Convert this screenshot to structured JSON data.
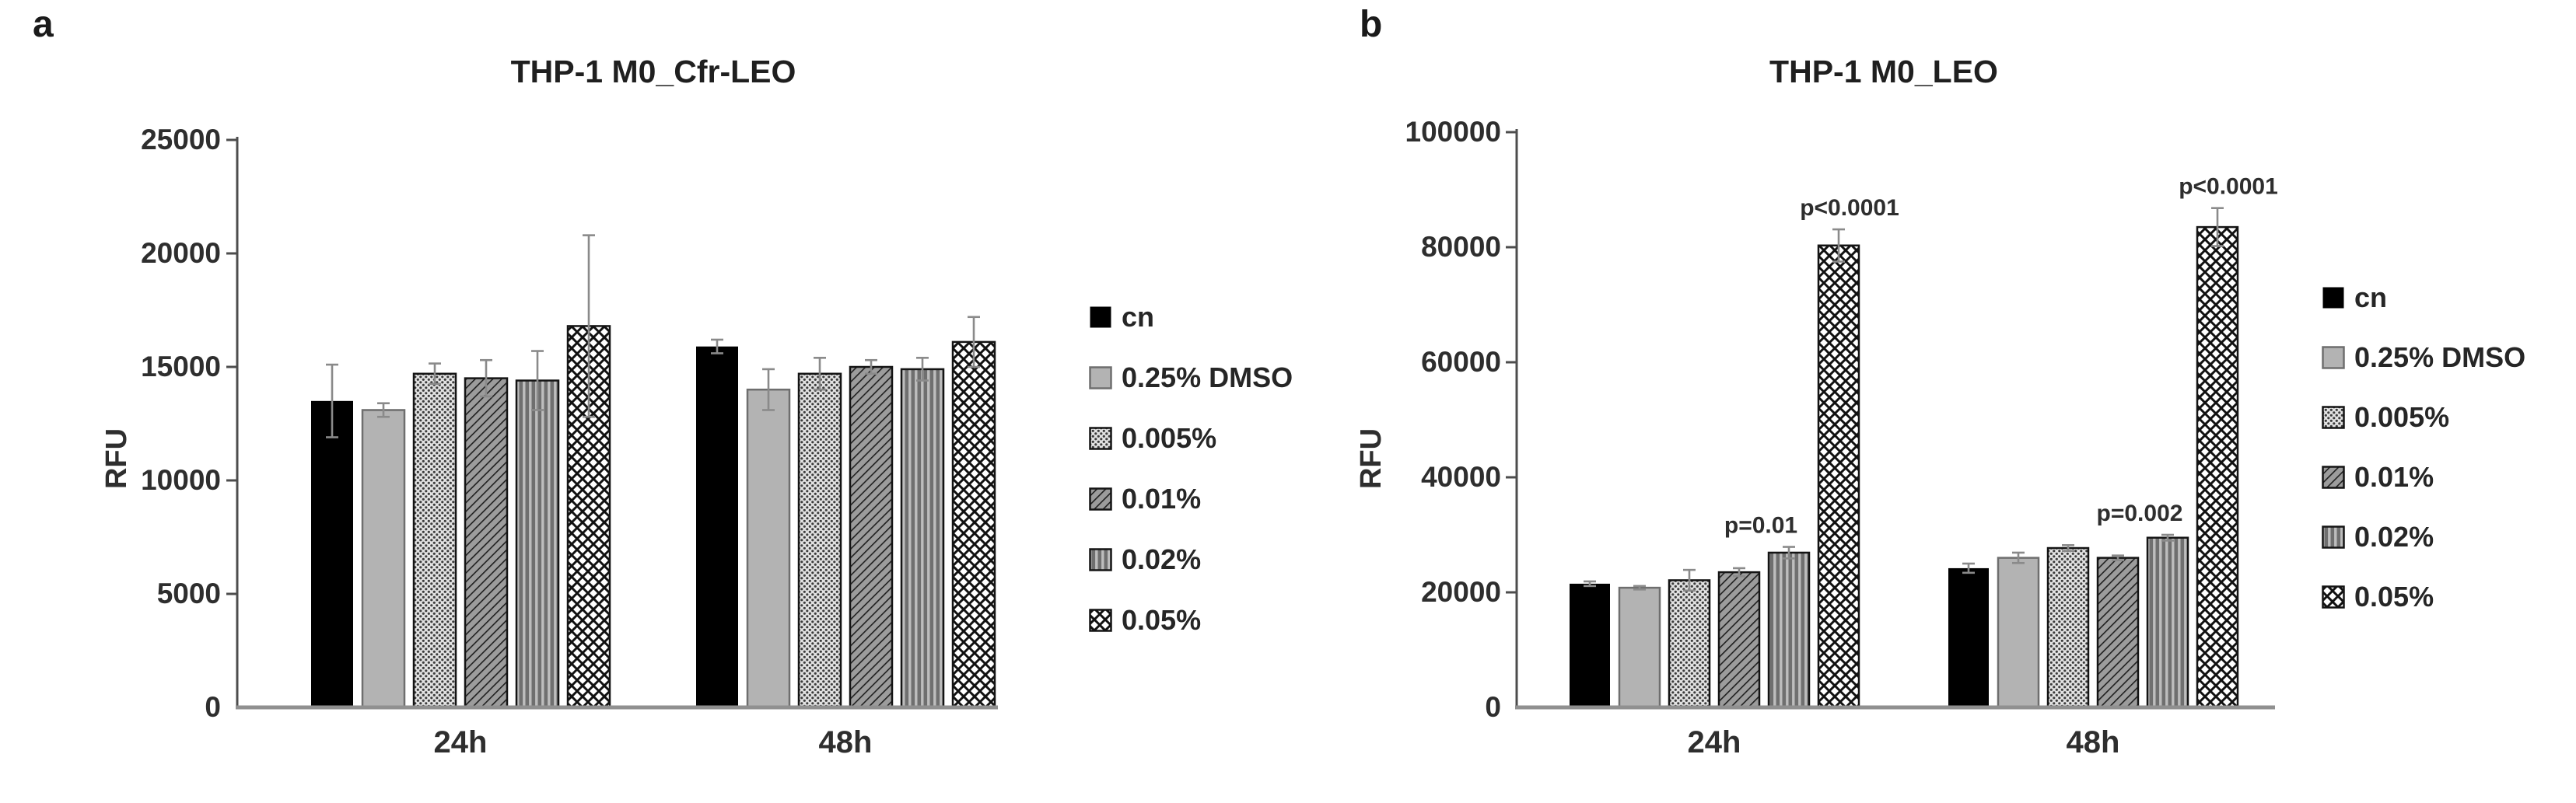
{
  "figure": {
    "ylabel_unit": "RFU",
    "palette": {
      "black": "#000000",
      "gray_fill": "#b3b3b3",
      "gray_stroke": "#6e6e6e",
      "pattern_stroke": "#141414",
      "dots_bg": "#e2e2e2",
      "dots_fg": "#3c3c3c",
      "diag_bg": "#9c9c9c",
      "diag_fg": "#1f1f1f",
      "vert_bg": "#6f6f6f",
      "vert_fg": "#bdbdbd",
      "diamond_bg": "#ffffff",
      "diamond_fg": "#111111",
      "error_bar": "#8a8a8a",
      "axis": "#4d4d4d",
      "baseline": "#909090",
      "text": "#2e2e2e"
    }
  },
  "chart_data": [
    {
      "id": "a",
      "type": "bar",
      "panel_label": "a",
      "title": "THP-1 M0_Cfr-LEO",
      "ylabel": "RFU",
      "xlabel": "",
      "grid": false,
      "legend_position": "right",
      "categories": [
        "24h",
        "48h"
      ],
      "ylim": [
        0,
        25000
      ],
      "yticks": [
        0,
        5000,
        10000,
        15000,
        20000,
        25000
      ],
      "series": [
        {
          "name": "cn",
          "pattern": "solid-black",
          "values": [
            13500,
            15900
          ],
          "errors": [
            1600,
            300
          ]
        },
        {
          "name": "0.25% DMSO",
          "pattern": "solid-gray",
          "values": [
            13100,
            14000
          ],
          "errors": [
            300,
            900
          ]
        },
        {
          "name": "0.005%",
          "pattern": "dots",
          "values": [
            14700,
            14700
          ],
          "errors": [
            450,
            700
          ]
        },
        {
          "name": "0.01%",
          "pattern": "diagonal",
          "values": [
            14500,
            15000
          ],
          "errors": [
            800,
            300
          ]
        },
        {
          "name": "0.02%",
          "pattern": "vertical",
          "values": [
            14400,
            14900
          ],
          "errors": [
            1300,
            500
          ]
        },
        {
          "name": "0.05%",
          "pattern": "diamond",
          "values": [
            16800,
            16100
          ],
          "errors": [
            4000,
            1100
          ]
        }
      ],
      "annotations": []
    },
    {
      "id": "b",
      "type": "bar",
      "panel_label": "b",
      "title": "THP-1 M0_LEO",
      "ylabel": "RFU",
      "xlabel": "",
      "grid": false,
      "legend_position": "right",
      "categories": [
        "24h",
        "48h"
      ],
      "ylim": [
        0,
        100000
      ],
      "yticks": [
        0,
        20000,
        40000,
        60000,
        80000,
        100000
      ],
      "series": [
        {
          "name": "cn",
          "pattern": "solid-black",
          "values": [
            21500,
            24200
          ],
          "errors": [
            400,
            800
          ]
        },
        {
          "name": "0.25% DMSO",
          "pattern": "solid-gray",
          "values": [
            20800,
            26000
          ],
          "errors": [
            300,
            900
          ]
        },
        {
          "name": "0.005%",
          "pattern": "dots",
          "values": [
            22100,
            27700
          ],
          "errors": [
            1800,
            500
          ]
        },
        {
          "name": "0.01%",
          "pattern": "diagonal",
          "values": [
            23500,
            26000
          ],
          "errors": [
            700,
            400
          ]
        },
        {
          "name": "0.02%",
          "pattern": "vertical",
          "values": [
            26900,
            29500
          ],
          "errors": [
            1000,
            500
          ]
        },
        {
          "name": "0.05%",
          "pattern": "diamond",
          "values": [
            80300,
            83500
          ],
          "errors": [
            2800,
            3300
          ]
        }
      ],
      "annotations": [
        {
          "text": "p=0.01",
          "series": "0.02%",
          "category": "24h"
        },
        {
          "text": "p=0.002",
          "series": "0.02%",
          "category": "48h"
        },
        {
          "text": "p<0.0001",
          "series": "0.05%",
          "category": "24h"
        },
        {
          "text": "p<0.0001",
          "series": "0.05%",
          "category": "48h"
        }
      ]
    }
  ]
}
